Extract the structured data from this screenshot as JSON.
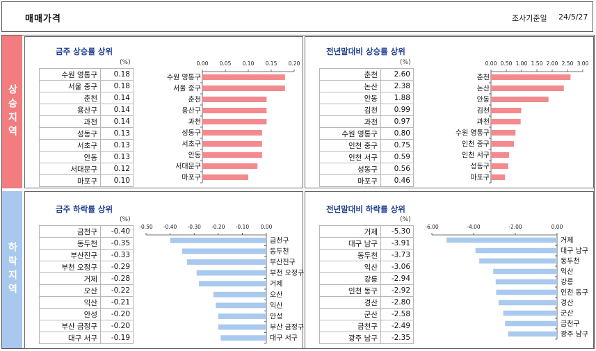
{
  "header": {
    "title": "매매가격",
    "date_label": "조사기준일",
    "date_value": "24/5/27"
  },
  "side_labels": {
    "up": "상승지역",
    "down": "하락지역"
  },
  "unit": "(%)",
  "colors": {
    "up_bar": "#f28a8e",
    "down_bar": "#a9c9ee",
    "up_side": "#f27c7e",
    "down_side": "#a8c8ee"
  },
  "panels": {
    "weekly_up": {
      "title": "금주 상승률 상위",
      "rows": [
        {
          "name": "수원 영통구",
          "value": "0.18"
        },
        {
          "name": "서울 중구",
          "value": "0.18"
        },
        {
          "name": "춘천",
          "value": "0.14"
        },
        {
          "name": "용산구",
          "value": "0.14"
        },
        {
          "name": "과천",
          "value": "0.14"
        },
        {
          "name": "성동구",
          "value": "0.13"
        },
        {
          "name": "서초구",
          "value": "0.13"
        },
        {
          "name": "안동",
          "value": "0.13"
        },
        {
          "name": "서대문구",
          "value": "0.12"
        },
        {
          "name": "마포구",
          "value": "0.10"
        }
      ]
    },
    "ytd_up": {
      "title": "전년말대비 상승률 상위",
      "rows": [
        {
          "name": "춘천",
          "value": "2.60"
        },
        {
          "name": "논산",
          "value": "2.38"
        },
        {
          "name": "안동",
          "value": "1.88"
        },
        {
          "name": "김천",
          "value": "0.99"
        },
        {
          "name": "과천",
          "value": "0.97"
        },
        {
          "name": "수원 영통구",
          "value": "0.80"
        },
        {
          "name": "인천 중구",
          "value": "0.75"
        },
        {
          "name": "인천 서구",
          "value": "0.59"
        },
        {
          "name": "성동구",
          "value": "0.56"
        },
        {
          "name": "마포구",
          "value": "0.46"
        }
      ]
    },
    "weekly_down": {
      "title": "금주 하락률 상위",
      "rows": [
        {
          "name": "금천구",
          "value": "-0.40"
        },
        {
          "name": "동두천",
          "value": "-0.35"
        },
        {
          "name": "부산진구",
          "value": "-0.33"
        },
        {
          "name": "부천 오정구",
          "value": "-0.29"
        },
        {
          "name": "거제",
          "value": "-0.28"
        },
        {
          "name": "오산",
          "value": "-0.22"
        },
        {
          "name": "익산",
          "value": "-0.21"
        },
        {
          "name": "안성",
          "value": "-0.20"
        },
        {
          "name": "부산 금정구",
          "value": "-0.20"
        },
        {
          "name": "대구 서구",
          "value": "-0.19"
        }
      ]
    },
    "ytd_down": {
      "title": "전년말대비 하락률 상위",
      "rows": [
        {
          "name": "거제",
          "value": "-5.30"
        },
        {
          "name": "대구 남구",
          "value": "-3.91"
        },
        {
          "name": "동두천",
          "value": "-3.73"
        },
        {
          "name": "익산",
          "value": "-3.06"
        },
        {
          "name": "강릉",
          "value": "-2.94"
        },
        {
          "name": "인천 동구",
          "value": "-2.92"
        },
        {
          "name": "경산",
          "value": "-2.80"
        },
        {
          "name": "군산",
          "value": "-2.58"
        },
        {
          "name": "금천구",
          "value": "-2.49"
        },
        {
          "name": "광주 남구",
          "value": "-2.35"
        }
      ]
    }
  },
  "chart_data": [
    {
      "type": "bar",
      "title": "금주 상승률 상위",
      "categories": [
        "수원 영통구",
        "서울 중구",
        "춘천",
        "용산구",
        "과천",
        "성동구",
        "서초구",
        "안동",
        "서대문구",
        "마포구"
      ],
      "values": [
        0.18,
        0.18,
        0.14,
        0.14,
        0.14,
        0.13,
        0.13,
        0.13,
        0.12,
        0.1
      ],
      "ticks": [
        "0.00",
        "0.05",
        "0.10",
        "0.15",
        "0.20"
      ],
      "xlim": [
        0,
        0.2
      ],
      "orientation": "horizontal",
      "grid": false
    },
    {
      "type": "bar",
      "title": "전년말대비 상승률 상위",
      "categories": [
        "춘천",
        "논산",
        "안동",
        "김천",
        "과천",
        "수원 영통구",
        "인천 중구",
        "인천 서구",
        "성동구",
        "마포구"
      ],
      "values": [
        2.6,
        2.38,
        1.88,
        0.99,
        0.97,
        0.8,
        0.75,
        0.59,
        0.56,
        0.46
      ],
      "ticks": [
        "0.00",
        "0.50",
        "1.00",
        "1.50",
        "2.00",
        "2.50",
        "3.00"
      ],
      "xlim": [
        0,
        3.0
      ],
      "orientation": "horizontal",
      "grid": false
    },
    {
      "type": "bar",
      "title": "금주 하락률 상위",
      "categories": [
        "금천구",
        "동두천",
        "부산진구",
        "부천 오정구",
        "거제",
        "오산",
        "익산",
        "안성",
        "부산 금정구",
        "대구 서구"
      ],
      "values": [
        -0.4,
        -0.35,
        -0.33,
        -0.29,
        -0.28,
        -0.22,
        -0.21,
        -0.2,
        -0.2,
        -0.19
      ],
      "ticks": [
        "-0.50",
        "-0.40",
        "-0.30",
        "-0.20",
        "-0.10",
        "0.00"
      ],
      "xlim": [
        -0.5,
        0
      ],
      "orientation": "horizontal",
      "grid": false
    },
    {
      "type": "bar",
      "title": "전년말대비 하락률 상위",
      "categories": [
        "거제",
        "대구 남구",
        "동두천",
        "익산",
        "강릉",
        "인천 동구",
        "경산",
        "군산",
        "금천구",
        "광주 남구"
      ],
      "values": [
        -5.3,
        -3.91,
        -3.73,
        -3.06,
        -2.94,
        -2.92,
        -2.8,
        -2.58,
        -2.49,
        -2.35
      ],
      "ticks": [
        "-6.00",
        "-4.00",
        "-2.00",
        "0.00"
      ],
      "xlim": [
        -6.0,
        0
      ],
      "orientation": "horizontal",
      "grid": false
    }
  ]
}
